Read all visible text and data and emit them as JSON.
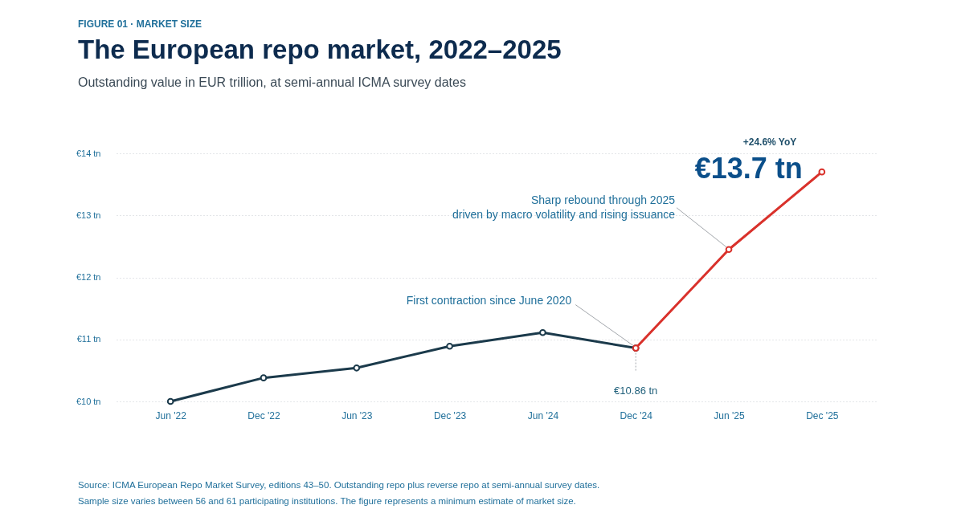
{
  "chart_data": {
    "type": "line",
    "title": "The European repo market, 2022–2025",
    "subtitle": "Outstanding value in EUR trillion, at semi-annual ICMA survey dates",
    "categories": [
      "Jun '22",
      "Dec '22",
      "Jun '23",
      "Dec '23",
      "Jun '24",
      "Dec '24",
      "Jun '25",
      "Dec '25"
    ],
    "series": [
      {
        "color": "#1b3a4b",
        "values": [
          10.0,
          10.38,
          10.54,
          10.89,
          11.11,
          10.86,
          null,
          null
        ]
      },
      {
        "color": "#d9312b",
        "values": [
          null,
          null,
          null,
          null,
          null,
          10.86,
          12.45,
          13.7
        ]
      }
    ],
    "ylim": [
      10,
      14
    ],
    "yticks": [
      {
        "value": 10,
        "label": "€10 tn"
      },
      {
        "value": 11,
        "label": "€11 tn"
      },
      {
        "value": 12,
        "label": "€12 tn"
      },
      {
        "value": 13,
        "label": "€13 tn"
      },
      {
        "value": 14,
        "label": "€14 tn"
      }
    ],
    "grid": "y",
    "marker": "circle",
    "line_style": "solid",
    "annotations": [
      "FIGURE 01 · MARKET SIZE",
      {
        "text": "First contraction since June 2020",
        "x": "Dec '24",
        "y": 10.86
      },
      {
        "text": "Sharp rebound through 2025\ndriven by macro volatility and rising issuance",
        "x": "Jun '25",
        "y": 12.45
      },
      {
        "text": "€10.86 tn",
        "x": "Dec '24",
        "y": 10.86
      },
      "+24.6% YoY",
      {
        "text": "€13.7 tn",
        "x": "Dec '25",
        "y": 13.7
      },
      "Source: ICMA European Repo Market Survey, editions 43–50. Outstanding repo plus reverse repo at semi-annual survey dates.",
      "Sample size varies between 56 and 61 participating institutions. The figure represents a minimum estimate of market size."
    ]
  }
}
